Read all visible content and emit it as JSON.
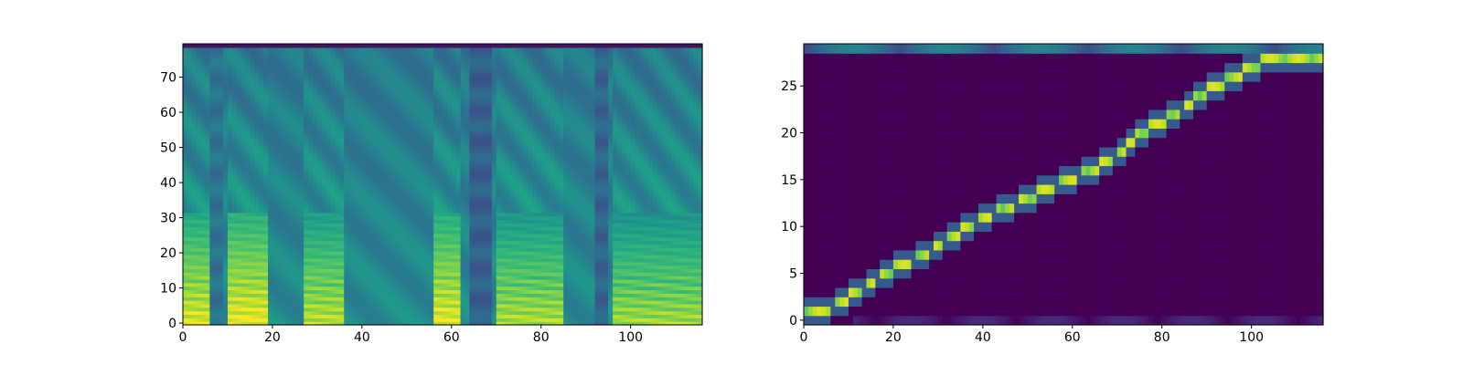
{
  "chart_data": [
    {
      "type": "heatmap",
      "description": "mel-spectrogram",
      "colormap": "viridis",
      "x_range": [
        0,
        116
      ],
      "y_range": [
        -0.5,
        79.5
      ],
      "x_ticks": [
        0,
        20,
        40,
        60,
        80,
        100
      ],
      "y_ticks": [
        0,
        10,
        20,
        30,
        40,
        50,
        60,
        70
      ],
      "xlabel": "",
      "ylabel": "",
      "title": "",
      "grid": false,
      "voiced_segments": [
        {
          "x": [
            0,
            6
          ],
          "peak": 0.95
        },
        {
          "x": [
            10,
            19
          ],
          "peak": 0.98
        },
        {
          "x": [
            27,
            36
          ],
          "peak": 0.9
        },
        {
          "x": [
            56,
            62
          ],
          "peak": 0.97
        },
        {
          "x": [
            70,
            85
          ],
          "peak": 0.88
        },
        {
          "x": [
            96,
            116
          ],
          "peak": 0.86
        }
      ],
      "low_energy_bands": [
        {
          "x": [
            6,
            9
          ],
          "level": 0.38
        },
        {
          "x": [
            64,
            69
          ],
          "level": 0.3
        },
        {
          "x": [
            92,
            95
          ],
          "level": 0.32
        }
      ]
    },
    {
      "type": "heatmap",
      "description": "attention alignment",
      "colormap": "viridis",
      "x_range": [
        0,
        116
      ],
      "y_range": [
        -0.5,
        29.5
      ],
      "x_ticks": [
        0,
        20,
        40,
        60,
        80,
        100
      ],
      "y_ticks": [
        0,
        5,
        10,
        15,
        20,
        25
      ],
      "xlabel": "",
      "ylabel": "",
      "title": "",
      "grid": false,
      "alignment_path": [
        {
          "x": 0,
          "y": 1
        },
        {
          "x": 5,
          "y": 1
        },
        {
          "x": 8,
          "y": 2
        },
        {
          "x": 12,
          "y": 3
        },
        {
          "x": 15,
          "y": 4
        },
        {
          "x": 18,
          "y": 5
        },
        {
          "x": 22,
          "y": 6
        },
        {
          "x": 27,
          "y": 7
        },
        {
          "x": 30,
          "y": 8
        },
        {
          "x": 33,
          "y": 9
        },
        {
          "x": 37,
          "y": 10
        },
        {
          "x": 40,
          "y": 11
        },
        {
          "x": 45,
          "y": 12
        },
        {
          "x": 50,
          "y": 13
        },
        {
          "x": 54,
          "y": 14
        },
        {
          "x": 59,
          "y": 15
        },
        {
          "x": 64,
          "y": 16
        },
        {
          "x": 68,
          "y": 17
        },
        {
          "x": 71,
          "y": 18
        },
        {
          "x": 73,
          "y": 19
        },
        {
          "x": 75,
          "y": 20
        },
        {
          "x": 79,
          "y": 21
        },
        {
          "x": 83,
          "y": 22
        },
        {
          "x": 86,
          "y": 23
        },
        {
          "x": 88,
          "y": 24
        },
        {
          "x": 92,
          "y": 25
        },
        {
          "x": 96,
          "y": 26
        },
        {
          "x": 100,
          "y": 27
        },
        {
          "x": 104,
          "y": 28
        },
        {
          "x": 108,
          "y": 28
        }
      ],
      "top_row_level": 0.45
    }
  ]
}
